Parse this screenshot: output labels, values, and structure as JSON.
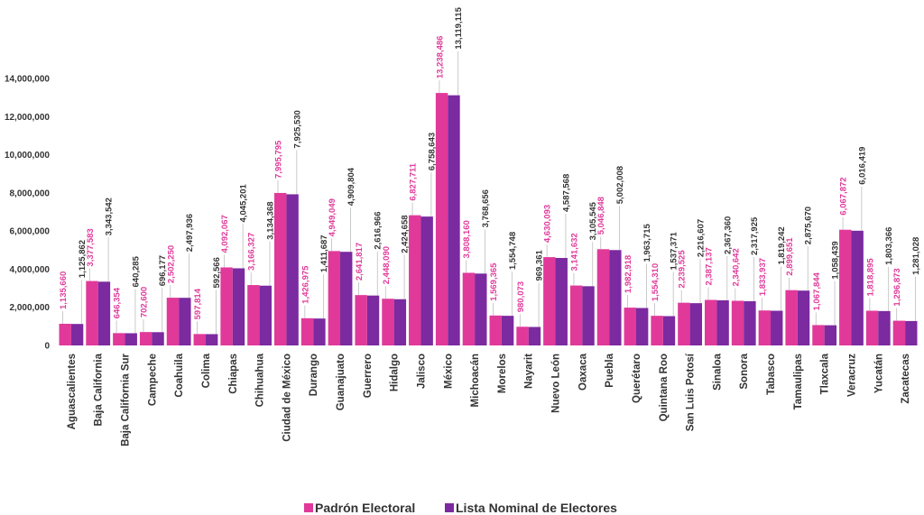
{
  "chart_data": {
    "type": "bar",
    "categories": [
      "Aguascalientes",
      "Baja California",
      "Baja California Sur",
      "Campeche",
      "Coahuila",
      "Colima",
      "Chiapas",
      "Chihuahua",
      "Ciudad de México",
      "Durango",
      "Guanajuato",
      "Guerrero",
      "Hidalgo",
      "Jalisco",
      "México",
      "Michoacán",
      "Morelos",
      "Nayarit",
      "Nuevo León",
      "Oaxaca",
      "Puebla",
      "Querétaro",
      "Quintana Roo",
      "San Luis Potosí",
      "Sinaloa",
      "Sonora",
      "Tabasco",
      "Tamaulipas",
      "Tlaxcala",
      "Veracruz",
      "Yucatán",
      "Zacatecas"
    ],
    "series": [
      {
        "name": "Padrón Electoral",
        "color": "#e0399a",
        "values": [
          1135660,
          3377583,
          646354,
          702600,
          2502250,
          597814,
          4092067,
          3166327,
          7995795,
          1426975,
          4949049,
          2641817,
          2448090,
          6827711,
          13238486,
          3808160,
          1569365,
          980073,
          4630093,
          3141632,
          5046848,
          1982918,
          1554310,
          2239525,
          2387137,
          2340642,
          1833937,
          2899651,
          1067844,
          6067872,
          1818895,
          1296873
        ]
      },
      {
        "name": "Lista Nominal de Electores",
        "color": "#7b2aa0",
        "values": [
          1125862,
          3343542,
          640285,
          696177,
          2497936,
          592566,
          4045201,
          3134368,
          7925530,
          1411687,
          4909804,
          2616966,
          2424658,
          6758643,
          13119115,
          3768656,
          1554748,
          969361,
          4587568,
          3105545,
          5002008,
          1963715,
          1537371,
          2216607,
          2367360,
          2317925,
          1819242,
          2875670,
          1058439,
          6016419,
          1803366,
          1281028
        ]
      }
    ],
    "yticks": [
      "0",
      "2,000,000",
      "4,000,000",
      "6,000,000",
      "8,000,000",
      "10,000,000",
      "12,000,000",
      "14,000,000"
    ],
    "ylim": [
      0,
      14000000
    ],
    "grid": false,
    "legend_position": "bottom",
    "title": "",
    "xlabel": "",
    "ylabel": ""
  }
}
